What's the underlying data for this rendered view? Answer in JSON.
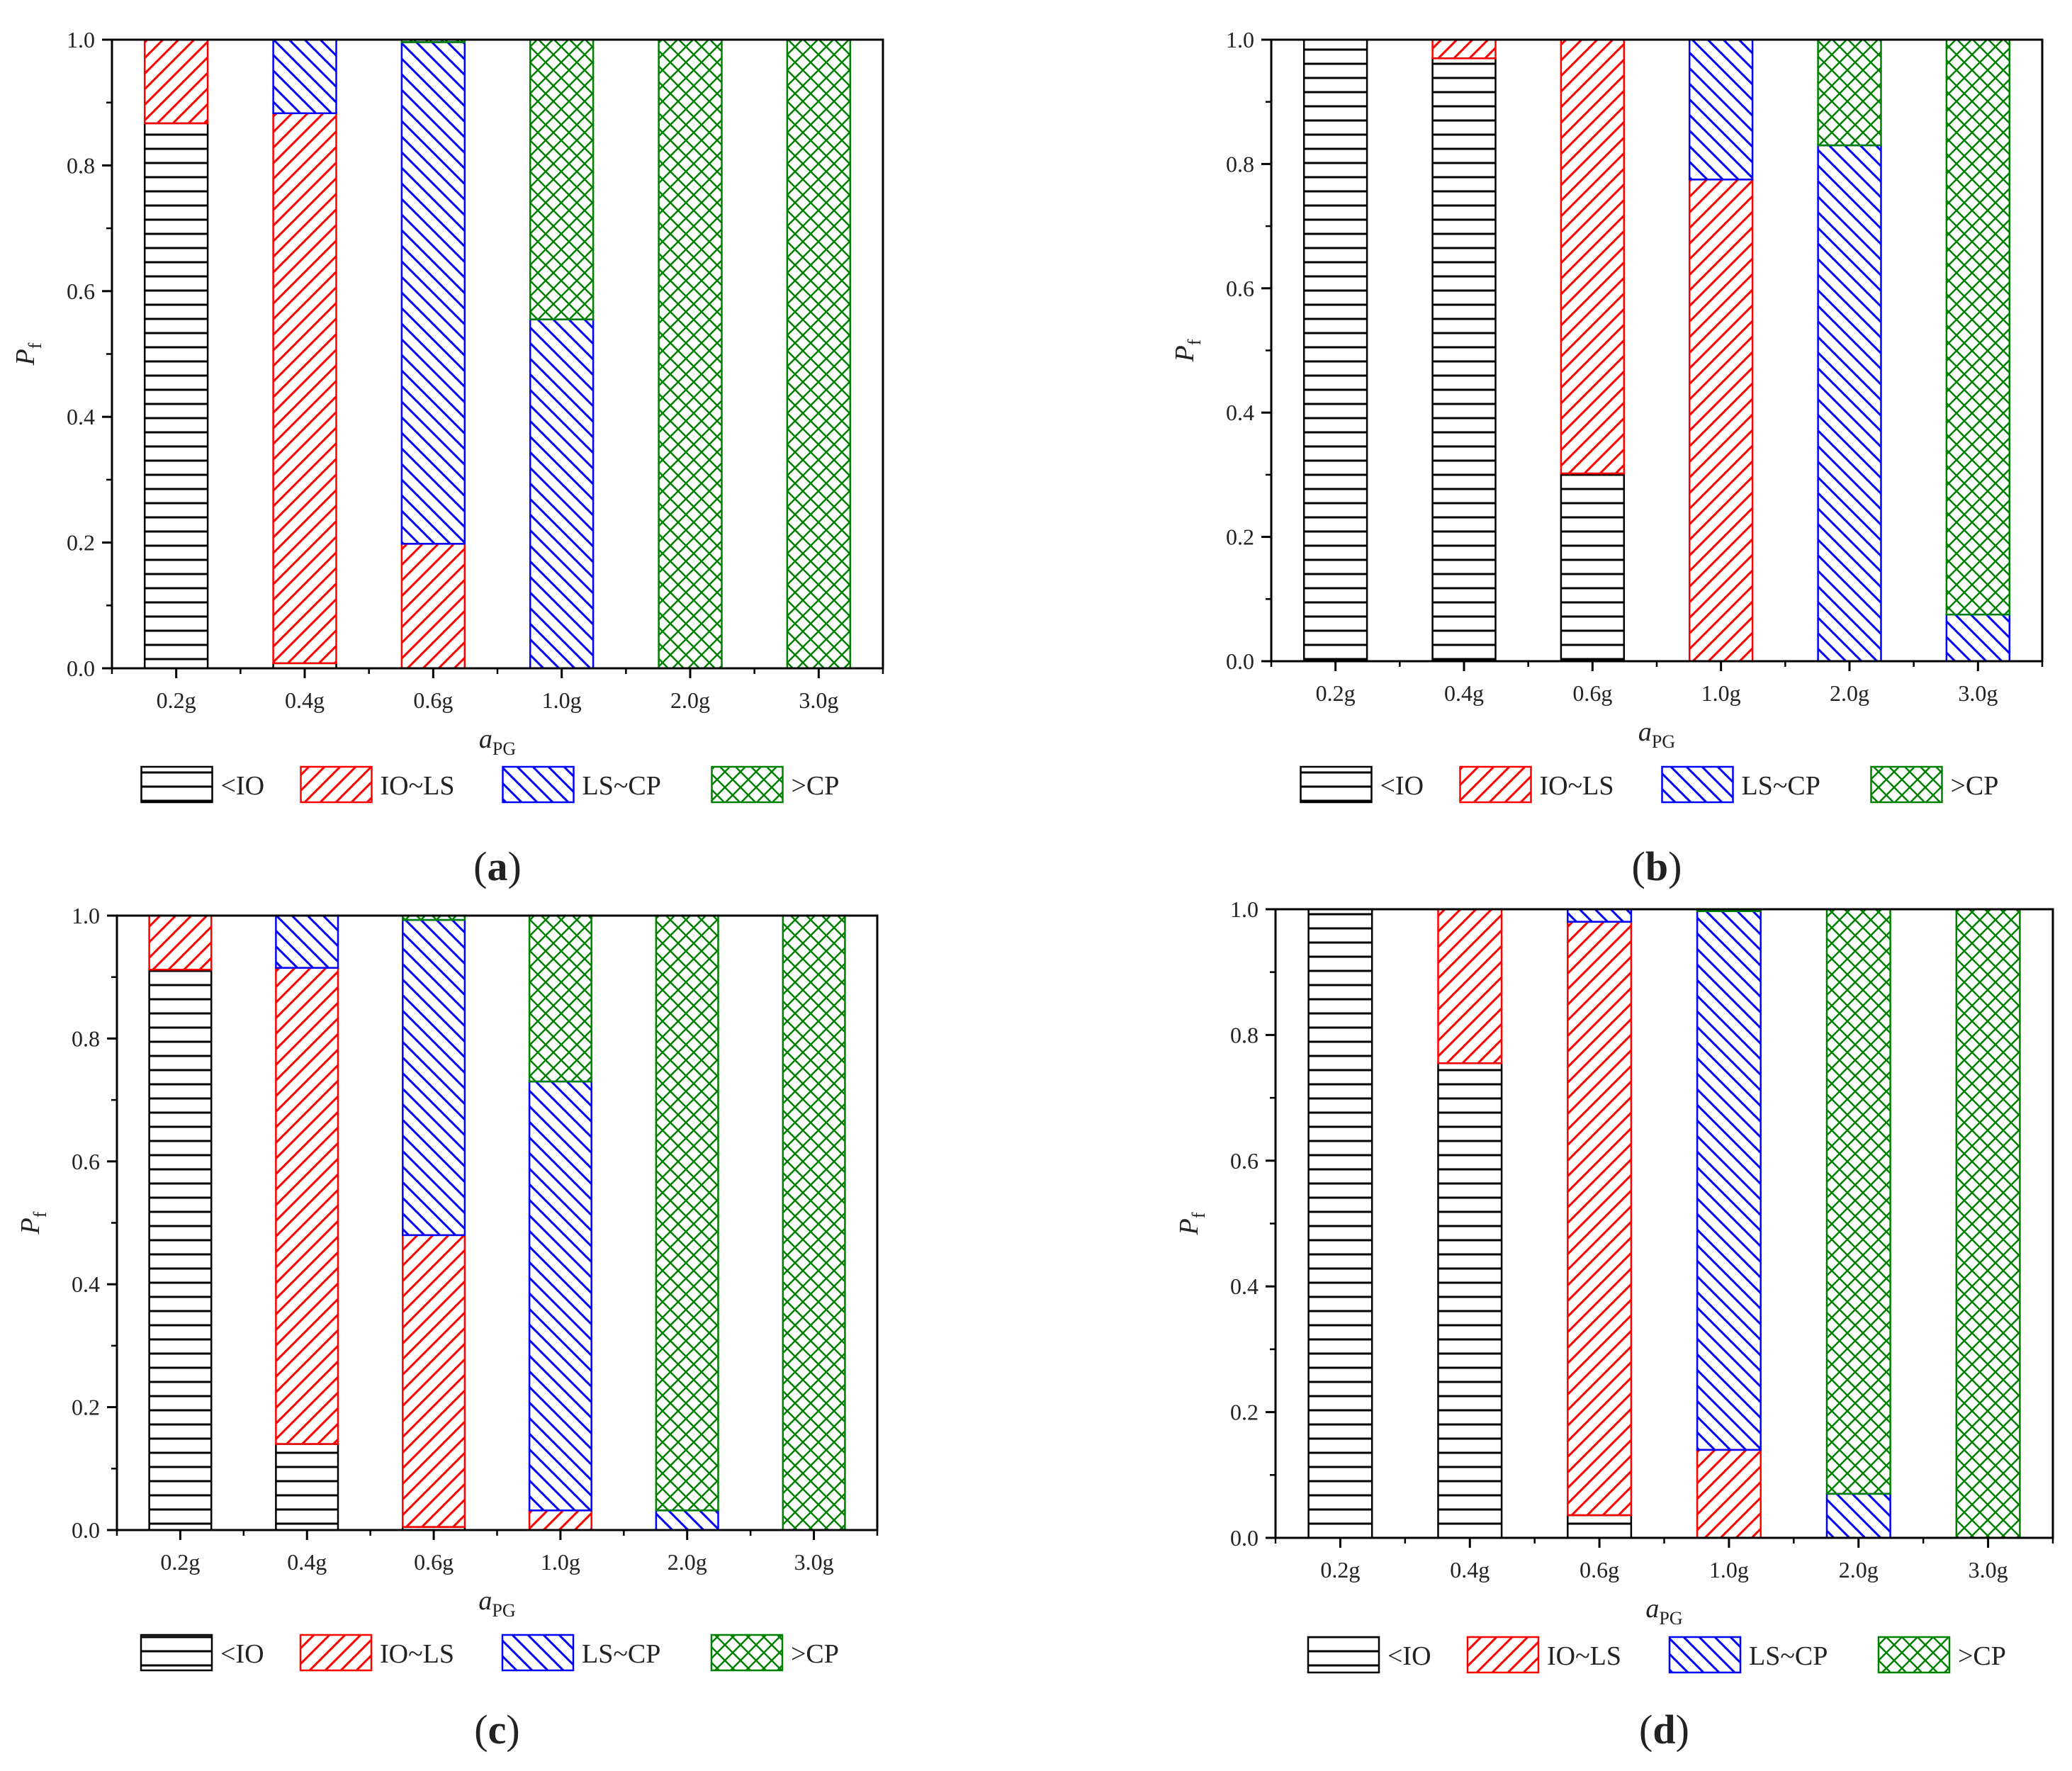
{
  "figure": {
    "panels": [
      "a",
      "b",
      "c",
      "d"
    ]
  },
  "chart_data": [
    {
      "type": "bar",
      "stacked": true,
      "panel_label": "a",
      "xlabel": "a",
      "xlabel_sub": "PG",
      "ylabel": "P",
      "ylabel_sub": "f",
      "ylim": [
        0,
        1.0
      ],
      "yticks": [
        "0.0",
        "0.2",
        "0.4",
        "0.6",
        "0.8",
        "1.0"
      ],
      "categories": [
        "0.2g",
        "0.4g",
        "0.6g",
        "1.0g",
        "2.0g",
        "3.0g"
      ],
      "series": [
        {
          "name": "<IO",
          "values": [
            0.867,
            0.008,
            0.0,
            0.0,
            0.0,
            0.0
          ]
        },
        {
          "name": "IO~LS",
          "values": [
            0.133,
            0.875,
            0.198,
            0.0,
            0.0,
            0.0
          ]
        },
        {
          "name": "LS~CP",
          "values": [
            0.0,
            0.117,
            0.798,
            0.555,
            0.0,
            0.0
          ]
        },
        {
          "name": ">CP",
          "values": [
            0.0,
            0.0,
            0.004,
            0.445,
            1.0,
            1.0
          ]
        }
      ],
      "legend": [
        "<IO",
        "IO~LS",
        "LS~CP",
        ">CP"
      ]
    },
    {
      "type": "bar",
      "stacked": true,
      "panel_label": "b",
      "xlabel": "a",
      "xlabel_sub": "PG",
      "ylabel": "P",
      "ylabel_sub": "f",
      "ylim": [
        0,
        1.0
      ],
      "yticks": [
        "0.0",
        "0.2",
        "0.4",
        "0.6",
        "0.8",
        "1.0"
      ],
      "categories": [
        "0.2g",
        "0.4g",
        "0.6g",
        "1.0g",
        "2.0g",
        "3.0g"
      ],
      "series": [
        {
          "name": "<IO",
          "values": [
            1.0,
            0.97,
            0.302,
            0.0,
            0.0,
            0.0
          ]
        },
        {
          "name": "IO~LS",
          "values": [
            0.0,
            0.03,
            0.698,
            0.775,
            0.0,
            0.0
          ]
        },
        {
          "name": "LS~CP",
          "values": [
            0.0,
            0.0,
            0.0,
            0.225,
            0.83,
            0.075
          ]
        },
        {
          "name": ">CP",
          "values": [
            0.0,
            0.0,
            0.0,
            0.0,
            0.17,
            0.925
          ]
        }
      ],
      "legend": [
        "<IO",
        "IO~LS",
        "LS~CP",
        ">CP"
      ]
    },
    {
      "type": "bar",
      "stacked": true,
      "panel_label": "c",
      "xlabel": "a",
      "xlabel_sub": "PG",
      "ylabel": "P",
      "ylabel_sub": "f",
      "ylim": [
        0,
        1.0
      ],
      "yticks": [
        "0.0",
        "0.2",
        "0.4",
        "0.6",
        "0.8",
        "1.0"
      ],
      "categories": [
        "0.2g",
        "0.4g",
        "0.6g",
        "1.0g",
        "2.0g",
        "3.0g"
      ],
      "series": [
        {
          "name": "<IO",
          "values": [
            0.912,
            0.14,
            0.005,
            0.0,
            0.0,
            0.0
          ]
        },
        {
          "name": "IO~LS",
          "values": [
            0.088,
            0.775,
            0.475,
            0.032,
            0.0,
            0.0
          ]
        },
        {
          "name": "LS~CP",
          "values": [
            0.0,
            0.085,
            0.513,
            0.698,
            0.032,
            0.0
          ]
        },
        {
          "name": ">CP",
          "values": [
            0.0,
            0.0,
            0.007,
            0.27,
            0.968,
            1.0
          ]
        }
      ],
      "legend": [
        "<IO",
        "IO~LS",
        "LS~CP",
        ">CP"
      ]
    },
    {
      "type": "bar",
      "stacked": true,
      "panel_label": "d",
      "xlabel": "a",
      "xlabel_sub": "PG",
      "ylabel": "P",
      "ylabel_sub": "f",
      "ylim": [
        0,
        1.0
      ],
      "yticks": [
        "0.0",
        "0.2",
        "0.4",
        "0.6",
        "0.8",
        "1.0"
      ],
      "categories": [
        "0.2g",
        "0.4g",
        "0.6g",
        "1.0g",
        "2.0g",
        "3.0g"
      ],
      "series": [
        {
          "name": "<IO",
          "values": [
            1.0,
            0.755,
            0.036,
            0.0,
            0.0,
            0.0
          ]
        },
        {
          "name": "IO~LS",
          "values": [
            0.0,
            0.245,
            0.944,
            0.14,
            0.0,
            0.0
          ]
        },
        {
          "name": "LS~CP",
          "values": [
            0.0,
            0.0,
            0.02,
            0.857,
            0.07,
            0.0
          ]
        },
        {
          "name": ">CP",
          "values": [
            0.0,
            0.0,
            0.0,
            0.003,
            0.93,
            1.0
          ]
        }
      ],
      "legend": [
        "<IO",
        "IO~LS",
        "LS~CP",
        ">CP"
      ]
    }
  ],
  "colors": {
    "<IO": "#000000",
    "IO~LS": "#ff0000",
    "LS~CP": "#0000ff",
    ">CP": "#008000",
    "axis": "#000000"
  }
}
